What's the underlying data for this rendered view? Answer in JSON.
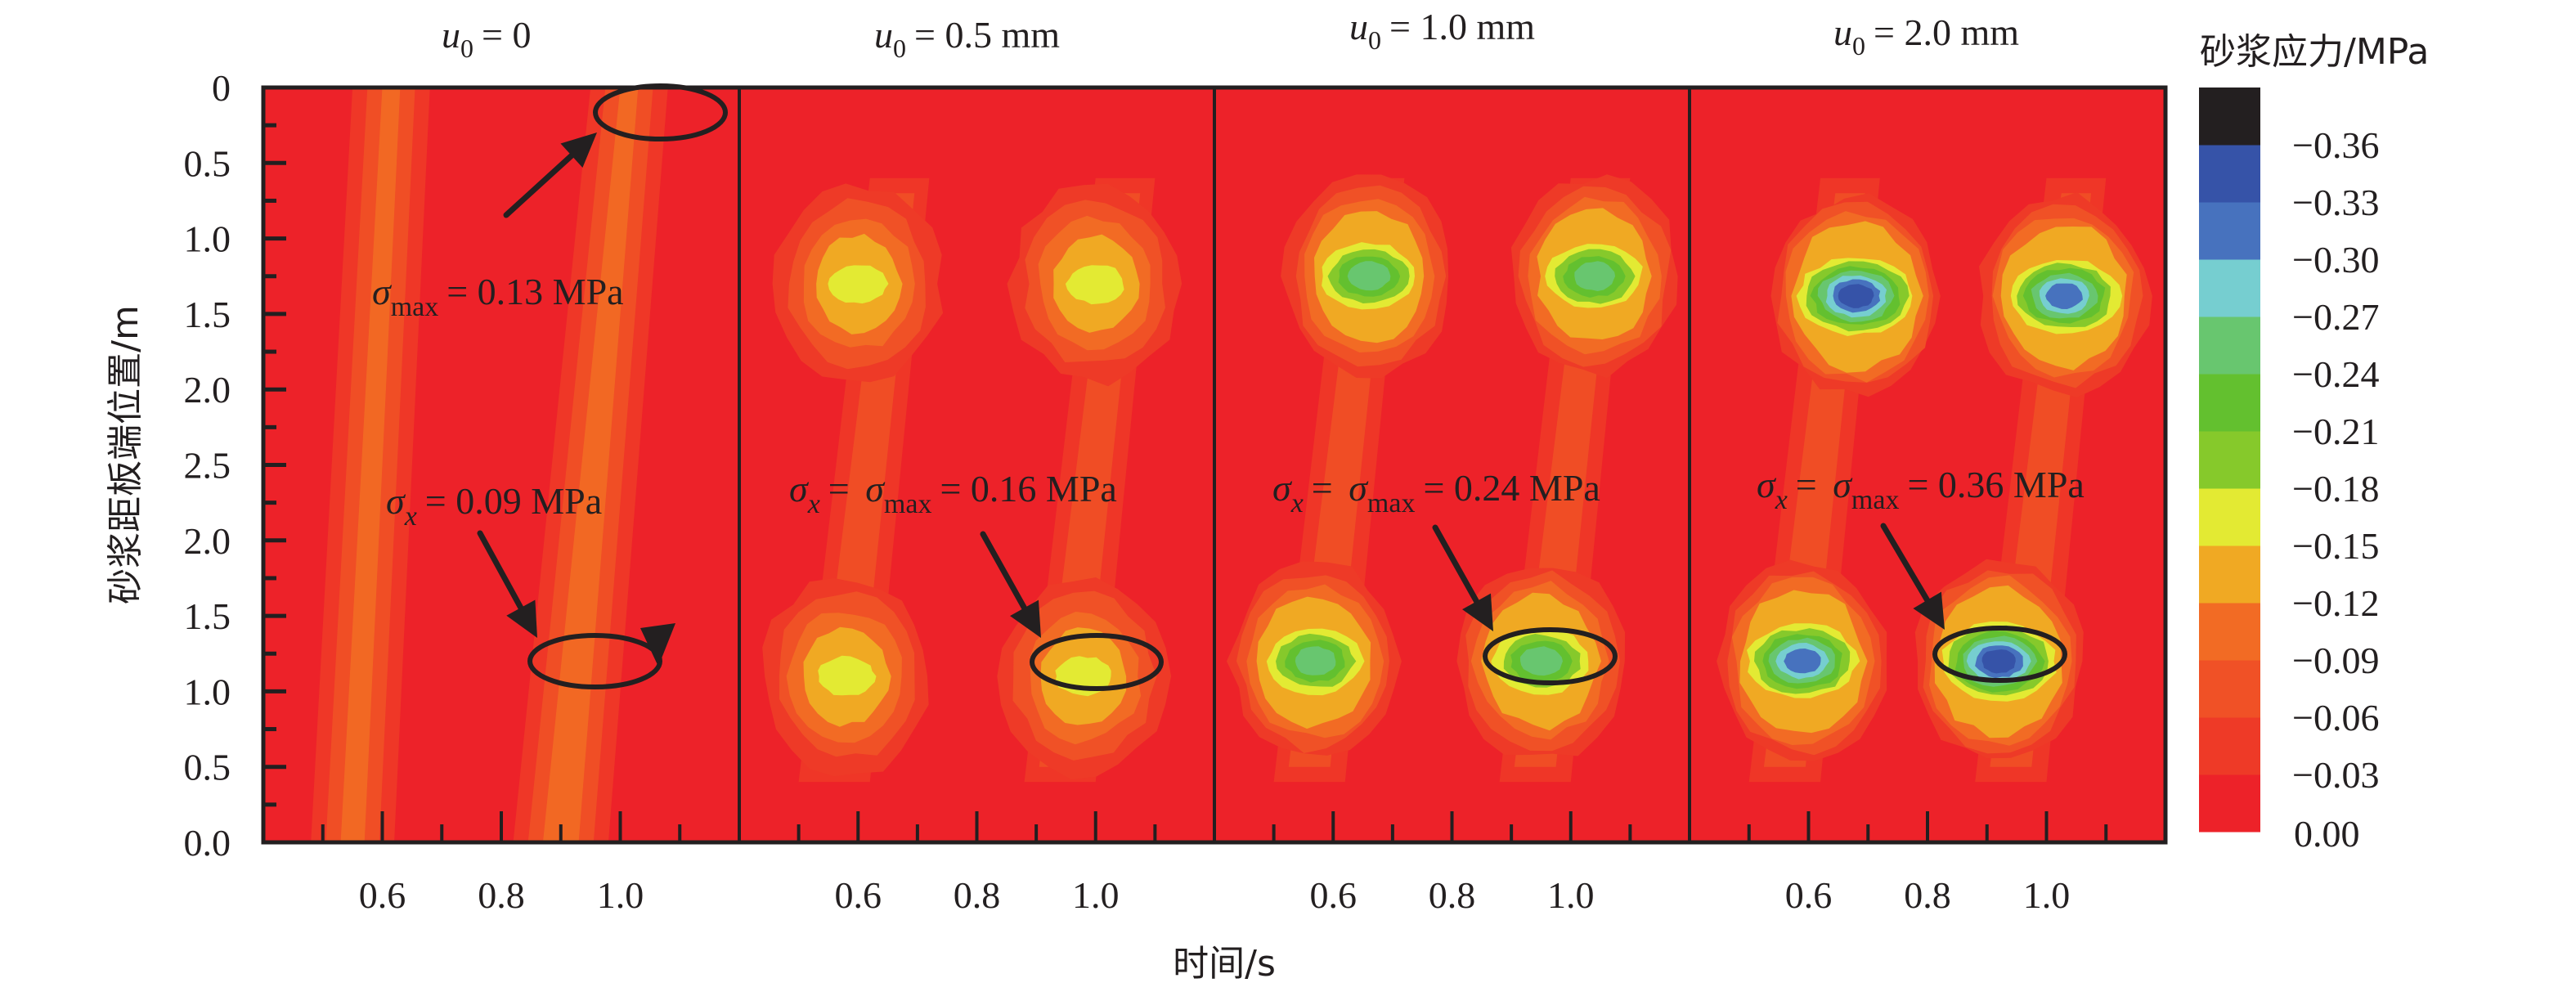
{
  "chart_data": {
    "type": "heatmap",
    "xlabel": "时间/s",
    "ylabel": "砂浆距板端位置/m",
    "colorbar": {
      "title": "砂浆应力/MPa",
      "levels": [
        0.0,
        -0.03,
        -0.06,
        -0.09,
        -0.12,
        -0.15,
        -0.18,
        -0.21,
        -0.24,
        -0.27,
        -0.3,
        -0.33,
        -0.36
      ],
      "tick_labels": [
        "0.00",
        "−0.03",
        "−0.06",
        "−0.09",
        "−0.12",
        "−0.15",
        "−0.18",
        "−0.21",
        "−0.24",
        "−0.27",
        "−0.30",
        "−0.33",
        "−0.36"
      ],
      "colors": [
        "#ed2229",
        "#ee3a27",
        "#f05126",
        "#f26b24",
        "#f0a923",
        "#e3ea33",
        "#86c92b",
        "#63c02f",
        "#68c66f",
        "#76ced0",
        "#4772be",
        "#3653a8",
        "#231f20"
      ]
    },
    "x_range": [
      0.4,
      1.2
    ],
    "x_ticks": [
      0.6,
      0.8,
      1.0
    ],
    "x_tick_labels": [
      "0.6",
      "0.8",
      "1.0"
    ],
    "y_tick_labels": [
      "0",
      "0.5",
      "1.0",
      "1.5",
      "2.0",
      "2.5",
      "2.0",
      "1.5",
      "1.0",
      "0.5",
      "0.0"
    ],
    "panels": [
      {
        "title_var": "u",
        "title_sub": "0",
        "title_rest": "= 0",
        "peak_stress_mpa": -0.13,
        "annotations": [
          {
            "lead": "σ",
            "sub": "max",
            "text": "= 0.13 MPa"
          },
          {
            "lead": "σ",
            "sub_italic": "x",
            "text": "= 0.09 MPa"
          }
        ],
        "hotspots": []
      },
      {
        "title_var": "u",
        "title_sub": "0",
        "title_rest": "= 0.5 mm",
        "peak_stress_mpa": -0.16,
        "annotations": [
          {
            "lead": "σ",
            "sub_italic": "x",
            "mid": "= σ",
            "sub": "max",
            "text": "= 0.16 MPa"
          }
        ],
        "hotspots": [
          {
            "t": 0.6,
            "pos": 1.3,
            "level": 5
          },
          {
            "t": 1.0,
            "pos": 1.3,
            "level": 5
          },
          {
            "t": 0.58,
            "pos": 3.9,
            "level": 5
          },
          {
            "t": 0.98,
            "pos": 3.9,
            "level": 5
          }
        ]
      },
      {
        "title_var": "u",
        "title_sub": "0",
        "title_rest": "= 1.0 mm",
        "peak_stress_mpa": -0.24,
        "annotations": [
          {
            "lead": "σ",
            "sub_italic": "x",
            "mid": "= σ",
            "sub": "max",
            "text": "= 0.24 MPa"
          }
        ],
        "hotspots": [
          {
            "t": 0.66,
            "pos": 1.25,
            "level": 8
          },
          {
            "t": 1.04,
            "pos": 1.25,
            "level": 8
          },
          {
            "t": 0.57,
            "pos": 3.8,
            "level": 8
          },
          {
            "t": 0.95,
            "pos": 3.8,
            "level": 8
          }
        ]
      },
      {
        "title_var": "u",
        "title_sub": "0",
        "title_rest": "= 2.0 mm",
        "peak_stress_mpa": -0.36,
        "annotations": [
          {
            "lead": "σ",
            "sub_italic": "x",
            "mid": "= σ",
            "sub": "max",
            "text": "= 0.36 MPa"
          }
        ],
        "hotspots": [
          {
            "t": 0.68,
            "pos": 1.38,
            "level": 11
          },
          {
            "t": 1.03,
            "pos": 1.38,
            "level": 10
          },
          {
            "t": 0.59,
            "pos": 3.8,
            "level": 10
          },
          {
            "t": 0.92,
            "pos": 3.8,
            "level": 11
          }
        ]
      }
    ]
  }
}
